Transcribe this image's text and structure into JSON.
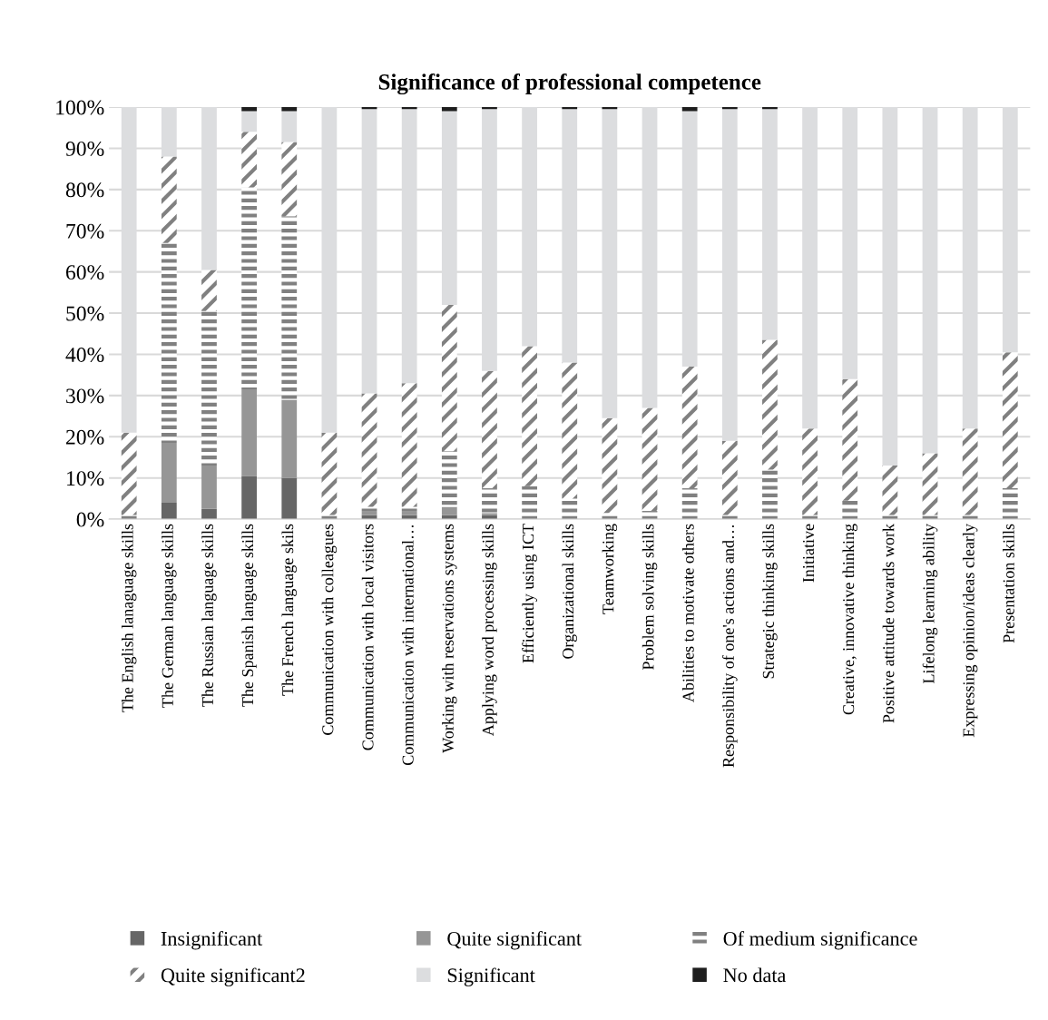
{
  "chart_data": {
    "type": "bar",
    "stacked": true,
    "title": "Significance of professional competence",
    "categories": [
      "The English lanaguage skills",
      "The German language skills",
      "The Russian language skills",
      "The Spanish language skills",
      "The French language skils",
      "Communication with colleagues",
      "Communication with local visitors",
      "Communication with international…",
      "Working with reservations systems",
      "Applying word processing skills",
      "Efficiently using ICT",
      "Organizational skills",
      "Teamworking",
      "Problem solving skills",
      "Abilities to motivate others",
      "Responsibility of one's actions and…",
      "Strategic thinking skills",
      "Initiative",
      "Creative, innovative thinking",
      "Positive attitude towards work",
      "Lifelong learning ability",
      "Expressing opinion/ideas clearly",
      "Presentation skills"
    ],
    "series": [
      {
        "name": "Insignificant",
        "color": "#666666",
        "values": [
          0,
          4,
          2.5,
          10.5,
          10,
          0,
          1,
          1,
          1,
          1,
          0,
          0,
          0,
          0,
          0,
          0,
          0,
          0,
          0,
          0,
          0,
          0,
          0
        ]
      },
      {
        "name": "Quite significant",
        "color": "#969696",
        "values": [
          0,
          14.5,
          10.5,
          21,
          19,
          0,
          1,
          1,
          2,
          0.5,
          0,
          0,
          0,
          0,
          0,
          0,
          0,
          0,
          0,
          0,
          0,
          0,
          0
        ]
      },
      {
        "name": "Of medium significance",
        "color": "#808080",
        "values": [
          1,
          48.5,
          37.5,
          49,
          44.5,
          1,
          1,
          1,
          13.5,
          6,
          8,
          5,
          1.5,
          2,
          7.5,
          1,
          12,
          1,
          4.5,
          1,
          1,
          1,
          7.5
        ]
      },
      {
        "name": "Quite significant2",
        "color": "#808080",
        "values": [
          20,
          21,
          10,
          13.5,
          18,
          20,
          27.5,
          30,
          35.5,
          28.5,
          34,
          33,
          23,
          25,
          29.5,
          18,
          31.5,
          21,
          29.5,
          12,
          15,
          21,
          33
        ]
      },
      {
        "name": "Significant",
        "color": "#dcdddf",
        "values": [
          79,
          12,
          39.5,
          5,
          7.5,
          79,
          69,
          66.5,
          47,
          63.5,
          58,
          61.5,
          75,
          73,
          62,
          80.5,
          56,
          78,
          66,
          87,
          84,
          78,
          59.5
        ]
      },
      {
        "name": "No data",
        "color": "#1e1e1e",
        "values": [
          0,
          0,
          0,
          1,
          1,
          0,
          0.5,
          0.5,
          1,
          0.5,
          0,
          0.5,
          0.5,
          0,
          1,
          0.5,
          0.5,
          0,
          0,
          0,
          0,
          0,
          0
        ]
      }
    ],
    "ylim": [
      0,
      100
    ],
    "yticks": [
      {
        "value": 0,
        "label": "0%"
      },
      {
        "value": 10,
        "label": "10%"
      },
      {
        "value": 20,
        "label": "20%"
      },
      {
        "value": 30,
        "label": "30%"
      },
      {
        "value": 40,
        "label": "40%"
      },
      {
        "value": 50,
        "label": "50%"
      },
      {
        "value": 60,
        "label": "60%"
      },
      {
        "value": 70,
        "label": "70%"
      },
      {
        "value": 80,
        "label": "80%"
      },
      {
        "value": 90,
        "label": "90%"
      },
      {
        "value": 100,
        "label": "100%"
      }
    ],
    "grid": "y",
    "legend": "bottom"
  }
}
